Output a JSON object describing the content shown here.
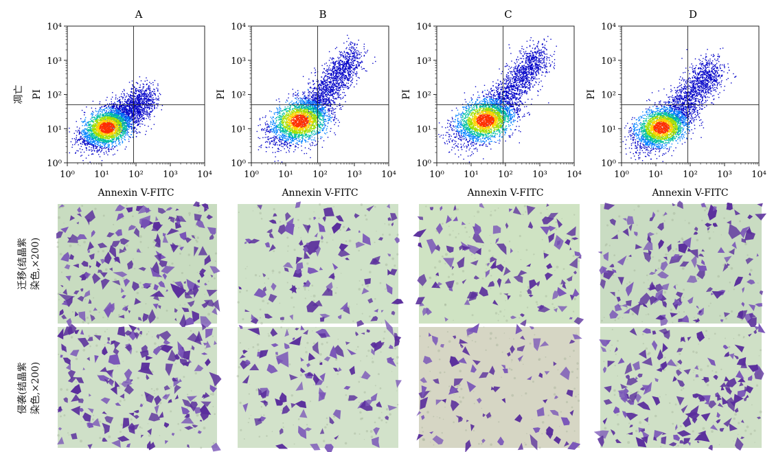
{
  "figure": {
    "row_labels": {
      "apoptosis": "凋亡",
      "migration": [
        "迁移(结晶紫",
        "染色,×200)"
      ],
      "invasion": [
        "侵袭(结晶紫",
        "染色,×200)"
      ]
    }
  },
  "chart_data": [
    {
      "type": "scatter",
      "title": "A",
      "xlabel": "Annexin V-FITC",
      "ylabel": "PI",
      "xscale": "log",
      "yscale": "log",
      "xlim": [
        1,
        10000
      ],
      "ylim": [
        1,
        10000
      ],
      "xticks": [
        "10⁰",
        "10¹",
        "10²",
        "10³",
        "10⁴"
      ],
      "yticks": [
        "10⁰",
        "10¹",
        "10²",
        "10³",
        "10⁴"
      ],
      "quadrant_gate": {
        "x": 85,
        "y": 50
      },
      "population": {
        "center": [
          14,
          11
        ],
        "spread": [
          0.38,
          0.28
        ],
        "tail": [
          220,
          90
        ]
      },
      "colors": [
        "#0000c8",
        "#0080ff",
        "#00c0a0",
        "#a0e000",
        "#ffd000",
        "#ff3000"
      ]
    },
    {
      "type": "scatter",
      "title": "B",
      "xlabel": "Annexin V-FITC",
      "ylabel": "PI",
      "xscale": "log",
      "yscale": "log",
      "xlim": [
        1,
        10000
      ],
      "ylim": [
        1,
        10000
      ],
      "xticks": [
        "10⁰",
        "10¹",
        "10²",
        "10³",
        "10⁴"
      ],
      "yticks": [
        "10⁰",
        "10¹",
        "10²",
        "10³",
        "10⁴"
      ],
      "quadrant_gate": {
        "x": 85,
        "y": 50
      },
      "population": {
        "center": [
          25,
          17
        ],
        "spread": [
          0.45,
          0.32
        ],
        "tail": [
          900,
          1200
        ]
      },
      "colors": [
        "#0000c8",
        "#0080ff",
        "#00c0a0",
        "#a0e000",
        "#ffd000",
        "#ff3000"
      ]
    },
    {
      "type": "scatter",
      "title": "C",
      "xlabel": "Annexin V-FITC",
      "ylabel": "PI",
      "xscale": "log",
      "yscale": "log",
      "xlim": [
        1,
        10000
      ],
      "ylim": [
        1,
        10000
      ],
      "xticks": [
        "10⁰",
        "10¹",
        "10²",
        "10³",
        "10⁴"
      ],
      "yticks": [
        "10⁰",
        "10¹",
        "10²",
        "10³",
        "10⁴"
      ],
      "quadrant_gate": {
        "x": 85,
        "y": 50
      },
      "population": {
        "center": [
          25,
          18
        ],
        "spread": [
          0.45,
          0.32
        ],
        "tail": [
          1000,
          1500
        ]
      },
      "colors": [
        "#0000c8",
        "#0080ff",
        "#00c0a0",
        "#a0e000",
        "#ffd000",
        "#ff3000"
      ]
    },
    {
      "type": "scatter",
      "title": "D",
      "xlabel": "Annexin V-FITC",
      "ylabel": "PI",
      "xscale": "log",
      "yscale": "log",
      "xlim": [
        1,
        10000
      ],
      "ylim": [
        1,
        10000
      ],
      "xticks": [
        "10⁰",
        "10¹",
        "10²",
        "10³",
        "10⁴"
      ],
      "yticks": [
        "10⁰",
        "10¹",
        "10²",
        "10³",
        "10⁴"
      ],
      "quadrant_gate": {
        "x": 85,
        "y": 50
      },
      "population": {
        "center": [
          14,
          11
        ],
        "spread": [
          0.4,
          0.3
        ],
        "tail": [
          500,
          600
        ]
      },
      "colors": [
        "#0000c8",
        "#0080ff",
        "#00c0a0",
        "#a0e000",
        "#ffd000",
        "#ff3000"
      ]
    }
  ],
  "micrographs": {
    "stain_color": "#5a2e9c",
    "background_colors": [
      "#c8dcc0",
      "#cfe2c8",
      "#cfe3c3",
      "#c9dcc2",
      "#cfe0c8",
      "#d2e2ca",
      "#d6d6c4",
      "#cfe0c6"
    ],
    "cell_density": [
      0.95,
      0.55,
      0.6,
      0.8,
      0.9,
      0.55,
      0.45,
      0.85
    ]
  }
}
